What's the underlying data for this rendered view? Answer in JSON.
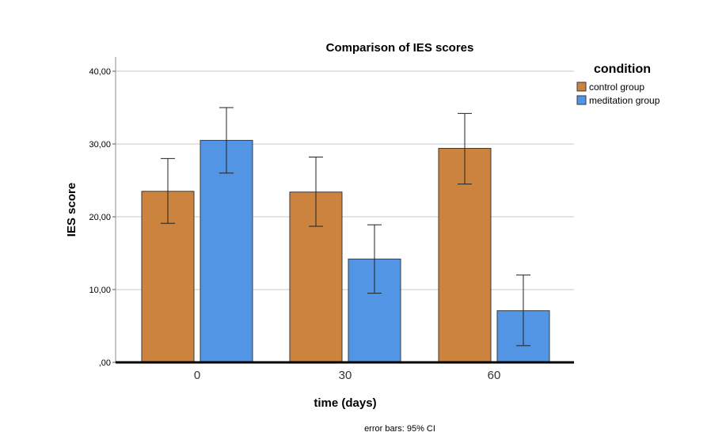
{
  "chart_data": {
    "type": "bar",
    "title": "Comparison of IES scores",
    "xlabel": "time (days)",
    "ylabel": "IES score",
    "categories": [
      "0",
      "30",
      "60"
    ],
    "ylim": [
      0,
      40
    ],
    "yticks": [
      0,
      10,
      20,
      30,
      40
    ],
    "ytick_labels": [
      ",00",
      "10,00",
      "20,00",
      "30,00",
      "40,00"
    ],
    "grid": true,
    "legend_title": "condition",
    "legend_position": "top-right",
    "series": [
      {
        "name": "control group",
        "color": "#CB833E",
        "values": [
          23.5,
          23.4,
          29.4
        ],
        "ci_low": [
          19.1,
          18.7,
          24.5
        ],
        "ci_high": [
          28.0,
          28.2,
          34.2
        ]
      },
      {
        "name": "meditation group",
        "color": "#5295E4",
        "values": [
          30.5,
          14.2,
          7.1
        ],
        "ci_low": [
          26.0,
          9.5,
          2.3
        ],
        "ci_high": [
          35.0,
          18.9,
          12.0
        ]
      }
    ],
    "note": "error bars: 95% CI"
  }
}
